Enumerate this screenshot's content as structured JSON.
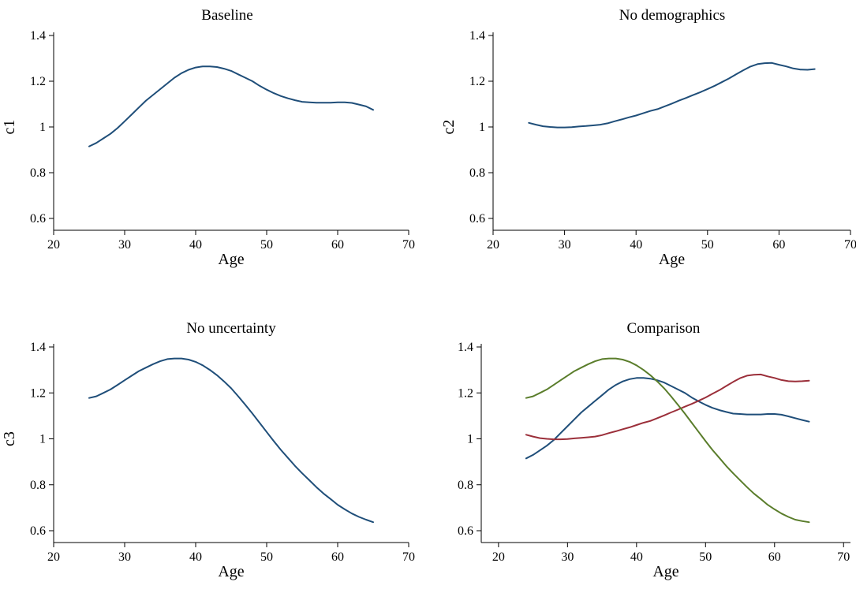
{
  "chart_data": [
    {
      "type": "line",
      "title": "Baseline",
      "xlabel": "Age",
      "ylabel": "c1",
      "xlim": [
        20,
        70
      ],
      "ylim": [
        0.6,
        1.4
      ],
      "xticks": [
        "20",
        "30",
        "40",
        "50",
        "60",
        "70"
      ],
      "yticks": [
        "0.6",
        "0.8",
        "1",
        "1.2",
        "1.4"
      ],
      "series": [
        {
          "color": "#1f4e79",
          "x": [
            25,
            26,
            27,
            28,
            29,
            30,
            31,
            32,
            33,
            34,
            35,
            36,
            37,
            38,
            39,
            40,
            41,
            42,
            43,
            44,
            45,
            46,
            47,
            48,
            49,
            50,
            51,
            52,
            53,
            54,
            55,
            56,
            57,
            58,
            59,
            60,
            61,
            62,
            63,
            64,
            65
          ],
          "y": [
            0.915,
            0.93,
            0.95,
            0.97,
            0.995,
            1.025,
            1.055,
            1.085,
            1.115,
            1.14,
            1.165,
            1.19,
            1.215,
            1.235,
            1.25,
            1.26,
            1.265,
            1.265,
            1.262,
            1.255,
            1.245,
            1.23,
            1.215,
            1.2,
            1.18,
            1.163,
            1.148,
            1.135,
            1.125,
            1.117,
            1.11,
            1.108,
            1.106,
            1.106,
            1.106,
            1.108,
            1.108,
            1.105,
            1.098,
            1.09,
            1.075
          ]
        }
      ]
    },
    {
      "type": "line",
      "title": "No demographics",
      "xlabel": "Age",
      "ylabel": "c2",
      "xlim": [
        20,
        70
      ],
      "ylim": [
        0.6,
        1.4
      ],
      "xticks": [
        "20",
        "30",
        "40",
        "50",
        "60",
        "70"
      ],
      "yticks": [
        "0.6",
        "0.8",
        "1",
        "1.2",
        "1.4"
      ],
      "series": [
        {
          "color": "#1f4e79",
          "x": [
            25,
            26,
            27,
            28,
            29,
            30,
            31,
            32,
            33,
            34,
            35,
            36,
            37,
            38,
            39,
            40,
            41,
            42,
            43,
            44,
            45,
            46,
            47,
            48,
            49,
            50,
            51,
            52,
            53,
            54,
            55,
            56,
            57,
            58,
            59,
            60,
            61,
            62,
            63,
            64,
            65
          ],
          "y": [
            1.018,
            1.01,
            1.003,
            1.0,
            0.998,
            0.998,
            0.999,
            1.002,
            1.004,
            1.007,
            1.01,
            1.016,
            1.025,
            1.033,
            1.042,
            1.05,
            1.06,
            1.07,
            1.078,
            1.09,
            1.102,
            1.115,
            1.127,
            1.14,
            1.152,
            1.166,
            1.18,
            1.196,
            1.212,
            1.23,
            1.248,
            1.264,
            1.275,
            1.279,
            1.28,
            1.272,
            1.265,
            1.256,
            1.251,
            1.25,
            1.253
          ]
        }
      ]
    },
    {
      "type": "line",
      "title": "No uncertainty",
      "xlabel": "Age",
      "ylabel": "c3",
      "xlim": [
        20,
        70
      ],
      "ylim": [
        0.6,
        1.4
      ],
      "xticks": [
        "20",
        "30",
        "40",
        "50",
        "60",
        "70"
      ],
      "yticks": [
        "0.6",
        "0.8",
        "1",
        "1.2",
        "1.4"
      ],
      "series": [
        {
          "color": "#1f4e79",
          "x": [
            25,
            26,
            27,
            28,
            29,
            30,
            31,
            32,
            33,
            34,
            35,
            36,
            37,
            38,
            39,
            40,
            41,
            42,
            43,
            44,
            45,
            46,
            47,
            48,
            49,
            50,
            51,
            52,
            53,
            54,
            55,
            56,
            57,
            58,
            59,
            60,
            61,
            62,
            63,
            64,
            65
          ],
          "y": [
            1.178,
            1.185,
            1.2,
            1.215,
            1.235,
            1.255,
            1.275,
            1.295,
            1.31,
            1.325,
            1.338,
            1.347,
            1.35,
            1.35,
            1.345,
            1.335,
            1.32,
            1.3,
            1.277,
            1.25,
            1.22,
            1.185,
            1.148,
            1.11,
            1.07,
            1.03,
            0.99,
            0.952,
            0.917,
            0.882,
            0.85,
            0.82,
            0.79,
            0.762,
            0.738,
            0.713,
            0.693,
            0.675,
            0.66,
            0.648,
            0.637
          ]
        }
      ]
    },
    {
      "type": "line",
      "title": "Comparison",
      "xlabel": "Age",
      "ylabel": "",
      "xlim": [
        17.5,
        71
      ],
      "ylim": [
        0.6,
        1.4
      ],
      "xticks": [
        "20",
        "30",
        "40",
        "50",
        "60",
        "70"
      ],
      "yticks": [
        "0.6",
        "0.8",
        "1",
        "1.2",
        "1.4"
      ],
      "series": [
        {
          "color": "#1f4e79",
          "x": [
            24,
            25,
            26,
            27,
            28,
            29,
            30,
            31,
            32,
            33,
            34,
            35,
            36,
            37,
            38,
            39,
            40,
            41,
            42,
            43,
            44,
            45,
            46,
            47,
            48,
            49,
            50,
            51,
            52,
            53,
            54,
            55,
            56,
            57,
            58,
            59,
            60,
            61,
            62,
            63,
            64,
            65
          ],
          "y": [
            0.915,
            0.93,
            0.95,
            0.97,
            0.995,
            1.025,
            1.055,
            1.085,
            1.115,
            1.14,
            1.165,
            1.19,
            1.215,
            1.235,
            1.25,
            1.26,
            1.265,
            1.265,
            1.262,
            1.255,
            1.245,
            1.23,
            1.215,
            1.2,
            1.18,
            1.163,
            1.148,
            1.135,
            1.125,
            1.117,
            1.11,
            1.108,
            1.106,
            1.106,
            1.106,
            1.108,
            1.108,
            1.105,
            1.098,
            1.09,
            1.082,
            1.075
          ]
        },
        {
          "color": "#9b2f3a",
          "x": [
            24,
            25,
            26,
            27,
            28,
            29,
            30,
            31,
            32,
            33,
            34,
            35,
            36,
            37,
            38,
            39,
            40,
            41,
            42,
            43,
            44,
            45,
            46,
            47,
            48,
            49,
            50,
            51,
            52,
            53,
            54,
            55,
            56,
            57,
            58,
            59,
            60,
            61,
            62,
            63,
            64,
            65
          ],
          "y": [
            1.018,
            1.01,
            1.003,
            1.0,
            0.998,
            0.998,
            0.999,
            1.002,
            1.004,
            1.007,
            1.01,
            1.016,
            1.025,
            1.033,
            1.042,
            1.05,
            1.06,
            1.07,
            1.078,
            1.09,
            1.102,
            1.115,
            1.127,
            1.14,
            1.152,
            1.166,
            1.18,
            1.196,
            1.212,
            1.23,
            1.248,
            1.264,
            1.275,
            1.279,
            1.28,
            1.272,
            1.265,
            1.256,
            1.251,
            1.25,
            1.251,
            1.253
          ]
        },
        {
          "color": "#5a7d2b",
          "x": [
            24,
            25,
            26,
            27,
            28,
            29,
            30,
            31,
            32,
            33,
            34,
            35,
            36,
            37,
            38,
            39,
            40,
            41,
            42,
            43,
            44,
            45,
            46,
            47,
            48,
            49,
            50,
            51,
            52,
            53,
            54,
            55,
            56,
            57,
            58,
            59,
            60,
            61,
            62,
            63,
            64,
            65
          ],
          "y": [
            1.178,
            1.185,
            1.2,
            1.215,
            1.235,
            1.255,
            1.275,
            1.295,
            1.31,
            1.325,
            1.338,
            1.347,
            1.35,
            1.35,
            1.345,
            1.335,
            1.32,
            1.3,
            1.277,
            1.25,
            1.22,
            1.185,
            1.148,
            1.11,
            1.07,
            1.03,
            0.99,
            0.952,
            0.917,
            0.882,
            0.85,
            0.82,
            0.79,
            0.762,
            0.738,
            0.713,
            0.693,
            0.675,
            0.66,
            0.648,
            0.642,
            0.637
          ]
        }
      ]
    }
  ]
}
